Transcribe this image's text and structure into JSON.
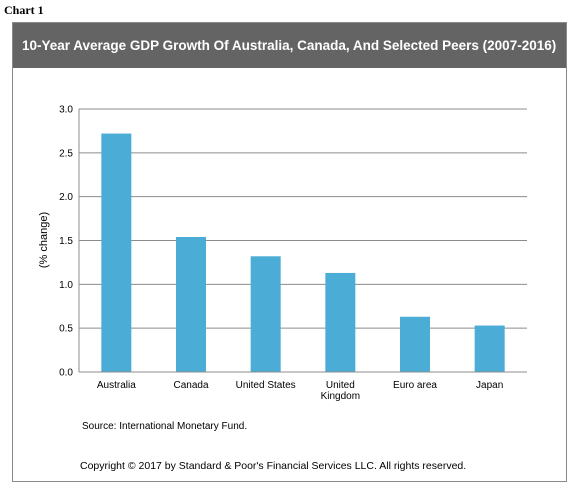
{
  "header": {
    "chart_label": "Chart 1"
  },
  "chart_data": {
    "type": "bar",
    "title": "10-Year Average GDP Growth Of Australia, Canada, And Selected Peers (2007-2016)",
    "ylabel": "(% change)",
    "xlabel": "",
    "categories": [
      "Australia",
      "Canada",
      "United States",
      "United Kingdom",
      "Euro area",
      "Japan"
    ],
    "values": [
      2.72,
      1.54,
      1.32,
      1.13,
      0.63,
      0.53
    ],
    "ylim": [
      0,
      3.0
    ],
    "yticks": [
      "0.0",
      "0.5",
      "1.0",
      "1.5",
      "2.0",
      "2.5",
      "3.0"
    ],
    "grid": true,
    "bar_color": "#4bacd6",
    "grid_color": "#8c8c8c"
  },
  "footer": {
    "source": "Source: International Monetary Fund.",
    "copyright": "Copyright © 2017 by Standard & Poor's Financial Services LLC. All rights reserved."
  }
}
